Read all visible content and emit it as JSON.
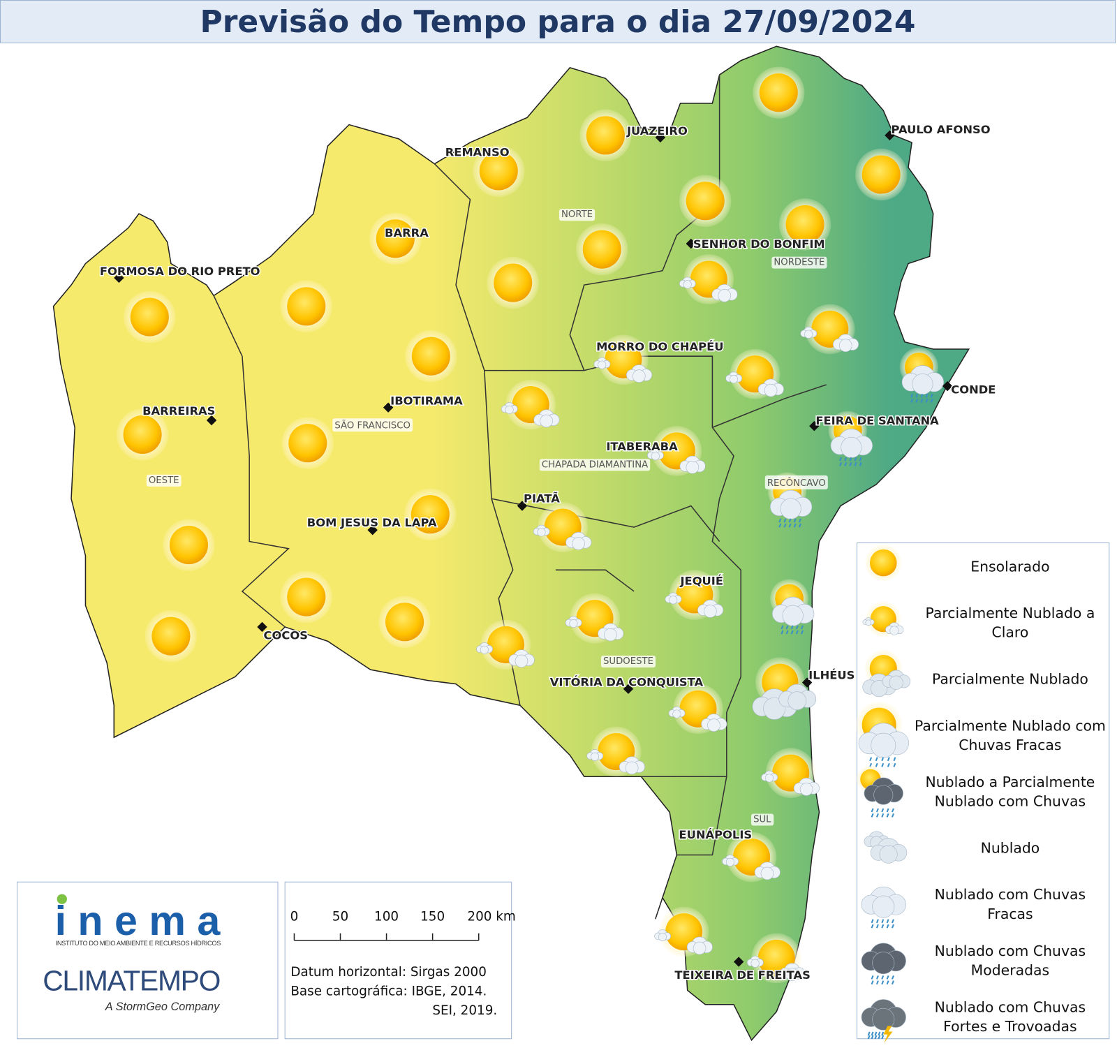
{
  "header": {
    "title": "Previsão do Tempo para o dia 27/09/2024"
  },
  "cities": [
    {
      "label": "JUAZEIRO"
    },
    {
      "label": "PAULO AFONSO"
    },
    {
      "label": "REMANSO"
    },
    {
      "label": "SENHOR DO BONFIM"
    },
    {
      "label": "FORMOSA DO RIO PRETO"
    },
    {
      "label": "BARRA"
    },
    {
      "label": "MORRO DO CHAPÉU"
    },
    {
      "label": "IBOTIRAMA"
    },
    {
      "label": "BARREIRAS"
    },
    {
      "label": "CONDE"
    },
    {
      "label": "FEIRA DE SANTANA"
    },
    {
      "label": "ITABERABA"
    },
    {
      "label": "PIATÃ"
    },
    {
      "label": "BOM JESUS DA LAPA"
    },
    {
      "label": "JEQUIÉ"
    },
    {
      "label": "COCOS"
    },
    {
      "label": "ILHÉUS"
    },
    {
      "label": "VITÓRIA DA CONQUISTA"
    },
    {
      "label": "EUNÁPOLIS"
    },
    {
      "label": "TEIXEIRA DE FREITAS"
    }
  ],
  "regions": [
    "NORTE",
    "NORDESTE",
    "SÃO FRANCISCO",
    "OESTE",
    "CHAPADA DIAMANTINA",
    "RECÔNCAVO",
    "SUDOESTE",
    "SUL"
  ],
  "legend": [
    {
      "lines": [
        "Ensolarado"
      ]
    },
    {
      "lines": [
        "Parcialmente Nublado a",
        "Claro"
      ]
    },
    {
      "lines": [
        "Parcialmente Nublado"
      ]
    },
    {
      "lines": [
        "Parcialmente Nublado com",
        "Chuvas Fracas"
      ]
    },
    {
      "lines": [
        "Nublado a Parcialmente",
        "Nublado com Chuvas"
      ]
    },
    {
      "lines": [
        "Nublado"
      ]
    },
    {
      "lines": [
        "Nublado com Chuvas",
        "Fracas"
      ]
    },
    {
      "lines": [
        "Nublado com Chuvas",
        "Moderadas"
      ]
    },
    {
      "lines": [
        "Nublado com Chuvas",
        "Fortes e Trovoadas"
      ]
    }
  ],
  "scale": {
    "ticks": [
      "0",
      "50",
      "100",
      "150",
      "200 km"
    ],
    "notes": [
      "Datum horizontal: Sirgas 2000",
      "Base cartográfica: IBGE, 2014.",
      "SEI, 2019."
    ]
  },
  "logos": {
    "inema": "inema",
    "inema_sub": "INSTITUTO DO MEIO AMBIENTE E RECURSOS HÍDRICOS",
    "climatempo": "CLIMATEMPO",
    "climatempo_sub": "A StormGeo Company"
  }
}
